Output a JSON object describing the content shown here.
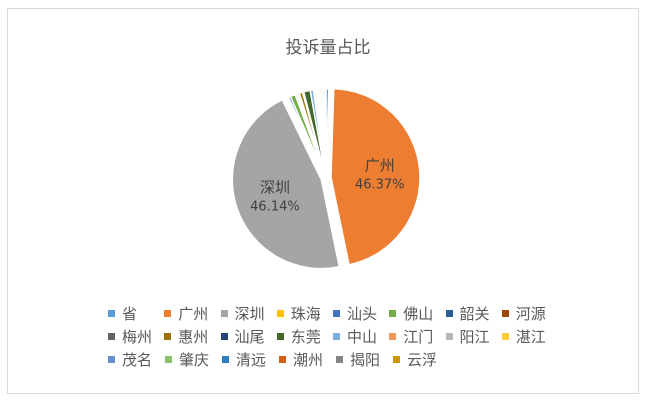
{
  "chart_data": {
    "type": "pie",
    "title": "投诉量占比",
    "slices": [
      {
        "label": "省",
        "value": 0.5,
        "color": "#5b9bd5",
        "data_label": ""
      },
      {
        "label": "广州",
        "value": 46.37,
        "color": "#ed7d31",
        "data_label": "46.37%"
      },
      {
        "label": "深圳",
        "value": 46.14,
        "color": "#a5a5a5",
        "data_label": "46.14%"
      },
      {
        "label": "珠海",
        "value": 0.3,
        "color": "#ffc000",
        "data_label": ""
      },
      {
        "label": "汕头",
        "value": 0.4,
        "color": "#4472c4",
        "data_label": ""
      },
      {
        "label": "佛山",
        "value": 0.9,
        "color": "#70ad47",
        "data_label": ""
      },
      {
        "label": "韶关",
        "value": 0.3,
        "color": "#255e91",
        "data_label": ""
      },
      {
        "label": "河源",
        "value": 0.2,
        "color": "#9e480e",
        "data_label": ""
      },
      {
        "label": "梅州",
        "value": 0.3,
        "color": "#636363",
        "data_label": ""
      },
      {
        "label": "惠州",
        "value": 0.6,
        "color": "#997300",
        "data_label": ""
      },
      {
        "label": "汕尾",
        "value": 0.2,
        "color": "#264478",
        "data_label": ""
      },
      {
        "label": "东莞",
        "value": 1.2,
        "color": "#43682b",
        "data_label": ""
      },
      {
        "label": "中山",
        "value": 0.6,
        "color": "#7cafdd",
        "data_label": ""
      },
      {
        "label": "江门",
        "value": 0.3,
        "color": "#f1975a",
        "data_label": ""
      },
      {
        "label": "阳江",
        "value": 0.2,
        "color": "#b7b7b7",
        "data_label": ""
      },
      {
        "label": "湛江",
        "value": 0.3,
        "color": "#ffcd33",
        "data_label": ""
      },
      {
        "label": "茂名",
        "value": 0.2,
        "color": "#698ed0",
        "data_label": ""
      },
      {
        "label": "肇庆",
        "value": 0.3,
        "color": "#8cc168",
        "data_label": ""
      },
      {
        "label": "清远",
        "value": 0.3,
        "color": "#327dc2",
        "data_label": ""
      },
      {
        "label": "潮州",
        "value": 0.2,
        "color": "#d26012",
        "data_label": ""
      },
      {
        "label": "揭阳",
        "value": 0.3,
        "color": "#848484",
        "data_label": ""
      },
      {
        "label": "云浮",
        "value": 0.15,
        "color": "#cc9a00",
        "data_label": ""
      }
    ],
    "legend_position": "bottom"
  }
}
